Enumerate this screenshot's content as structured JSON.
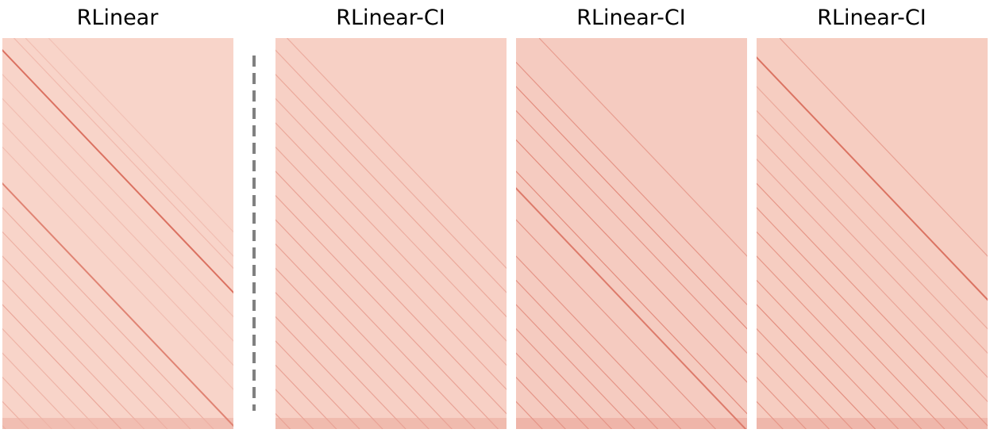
{
  "chart_data": [
    {
      "type": "heatmap",
      "title": "RLinear",
      "diagonals": [
        {
          "offset": -0.05,
          "intensity": 0.55
        },
        {
          "offset": -0.6,
          "intensity": 0.45
        },
        {
          "offset": -1.1,
          "intensity": 0.25
        },
        {
          "offset": 0.05,
          "intensity": 0.15
        },
        {
          "offset": 0.1,
          "intensity": 0.12
        },
        {
          "offset": 0.2,
          "intensity": 0.1
        },
        {
          "offset": -0.15,
          "intensity": 0.12
        },
        {
          "offset": -0.25,
          "intensity": 0.12
        },
        {
          "offset": -0.35,
          "intensity": 0.12
        },
        {
          "offset": -0.45,
          "intensity": 0.12
        },
        {
          "offset": -0.7,
          "intensity": 0.2
        },
        {
          "offset": -0.8,
          "intensity": 0.2
        },
        {
          "offset": -0.9,
          "intensity": 0.2
        },
        {
          "offset": -1.0,
          "intensity": 0.2
        },
        {
          "offset": -1.2,
          "intensity": 0.18
        },
        {
          "offset": -1.3,
          "intensity": 0.18
        },
        {
          "offset": -1.4,
          "intensity": 0.18
        },
        {
          "offset": -1.5,
          "intensity": 0.2
        },
        {
          "offset": -1.6,
          "intensity": 0.2
        }
      ],
      "base_intensity": 0.1
    },
    {
      "type": "heatmap",
      "title": "RLinear-CI",
      "diagonals": [
        {
          "offset": 0.05,
          "intensity": 0.2
        },
        {
          "offset": -0.05,
          "intensity": 0.2
        },
        {
          "offset": -0.15,
          "intensity": 0.22
        },
        {
          "offset": -0.25,
          "intensity": 0.2
        },
        {
          "offset": -0.35,
          "intensity": 0.22
        },
        {
          "offset": -0.45,
          "intensity": 0.22
        },
        {
          "offset": -0.55,
          "intensity": 0.25
        },
        {
          "offset": -0.65,
          "intensity": 0.25
        },
        {
          "offset": -0.75,
          "intensity": 0.25
        },
        {
          "offset": -0.85,
          "intensity": 0.25
        },
        {
          "offset": -0.95,
          "intensity": 0.25
        },
        {
          "offset": -1.05,
          "intensity": 0.25
        },
        {
          "offset": -1.15,
          "intensity": 0.25
        },
        {
          "offset": -1.25,
          "intensity": 0.25
        },
        {
          "offset": -1.35,
          "intensity": 0.25
        },
        {
          "offset": -1.45,
          "intensity": 0.25
        },
        {
          "offset": -1.55,
          "intensity": 0.25
        }
      ],
      "base_intensity": 0.12
    },
    {
      "type": "heatmap",
      "title": "RLinear-CI",
      "diagonals": [
        {
          "offset": 0.1,
          "intensity": 0.25
        },
        {
          "offset": -0.1,
          "intensity": 0.3
        },
        {
          "offset": -0.2,
          "intensity": 0.35
        },
        {
          "offset": -0.3,
          "intensity": 0.3
        },
        {
          "offset": -0.42,
          "intensity": 0.35
        },
        {
          "offset": -0.55,
          "intensity": 0.35
        },
        {
          "offset": -0.62,
          "intensity": 0.45
        },
        {
          "offset": -0.75,
          "intensity": 0.3
        },
        {
          "offset": -0.9,
          "intensity": 0.3
        },
        {
          "offset": -1.0,
          "intensity": 0.3
        },
        {
          "offset": -1.1,
          "intensity": 0.3
        },
        {
          "offset": -1.2,
          "intensity": 0.3
        },
        {
          "offset": -1.3,
          "intensity": 0.3
        },
        {
          "offset": -1.4,
          "intensity": 0.3
        },
        {
          "offset": -1.5,
          "intensity": 0.3
        }
      ],
      "base_intensity": 0.15
    },
    {
      "type": "heatmap",
      "title": "RLinear-CI",
      "diagonals": [
        {
          "offset": 0.1,
          "intensity": 0.25
        },
        {
          "offset": -0.08,
          "intensity": 0.5
        },
        {
          "offset": -0.2,
          "intensity": 0.2
        },
        {
          "offset": -0.3,
          "intensity": 0.2
        },
        {
          "offset": -0.4,
          "intensity": 0.22
        },
        {
          "offset": -0.5,
          "intensity": 0.22
        },
        {
          "offset": -0.6,
          "intensity": 0.3
        },
        {
          "offset": -0.7,
          "intensity": 0.3
        },
        {
          "offset": -0.8,
          "intensity": 0.3
        },
        {
          "offset": -0.9,
          "intensity": 0.3
        },
        {
          "offset": -1.0,
          "intensity": 0.3
        },
        {
          "offset": -1.1,
          "intensity": 0.35
        },
        {
          "offset": -1.2,
          "intensity": 0.3
        },
        {
          "offset": -1.3,
          "intensity": 0.3
        },
        {
          "offset": -1.4,
          "intensity": 0.3
        },
        {
          "offset": -1.5,
          "intensity": 0.3
        }
      ],
      "base_intensity": 0.14
    }
  ],
  "colors": {
    "heat_low": "#fde6dc",
    "heat_high": "#c8321e",
    "divider": "#808080"
  }
}
